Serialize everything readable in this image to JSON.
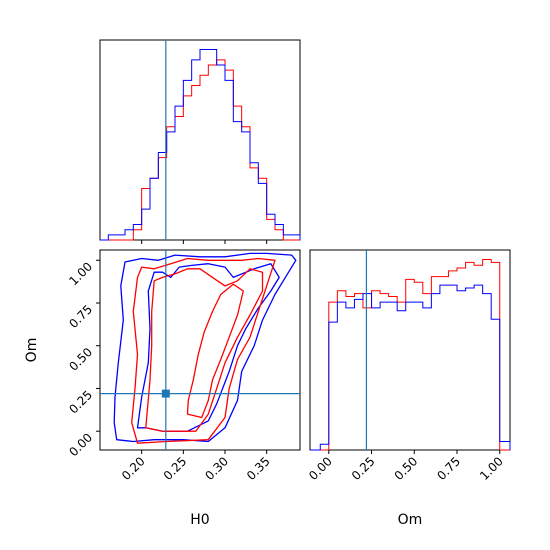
{
  "chart_data": {
    "type": "corner",
    "colors": {
      "series_a": "#ff0000",
      "series_b": "#0000ff",
      "truth": "#1f77b4"
    },
    "truth": {
      "H0": 0.229,
      "Om": 0.22
    },
    "panels": [
      {
        "id": "hist-H0",
        "type": "histogram",
        "x_param": "H0",
        "xlim": [
          0.15,
          0.39
        ],
        "bin_edges": [
          0.15,
          0.16,
          0.17,
          0.18,
          0.19,
          0.2,
          0.21,
          0.22,
          0.23,
          0.24,
          0.25,
          0.26,
          0.27,
          0.28,
          0.29,
          0.3,
          0.31,
          0.32,
          0.33,
          0.34,
          0.35,
          0.36,
          0.37,
          0.38,
          0.39
        ],
        "series": [
          {
            "key": "series_a",
            "values": [
              0,
              0,
              0,
              0,
              2,
              10,
              12,
              16,
              22,
              24,
              28,
              30,
              32,
              34,
              35,
              33,
              26,
              22,
              14,
              12,
              4,
              2,
              0,
              0
            ]
          },
          {
            "key": "series_b",
            "values": [
              0,
              1,
              1,
              2,
              3,
              6,
              12,
              17,
              21,
              26,
              31,
              35,
              37,
              37,
              34,
              31,
              23,
              21,
              15,
              11,
              5,
              3,
              1,
              1
            ]
          }
        ]
      },
      {
        "id": "contour-H0-Om",
        "type": "contour",
        "x_param": "H0",
        "y_param": "Om",
        "xlim": [
          0.15,
          0.39
        ],
        "ylim": [
          -0.11,
          1.06
        ],
        "x_ticks": [
          "0.20",
          "0.25",
          "0.30",
          "0.35"
        ],
        "x_tick_values": [
          0.2,
          0.25,
          0.3,
          0.35
        ],
        "y_ticks": [
          "0.00",
          "0.25",
          "0.50",
          "0.75",
          "1.00"
        ],
        "y_tick_values": [
          0.0,
          0.25,
          0.5,
          0.75,
          1.0
        ],
        "xlabel": "H0",
        "ylabel": "Om",
        "contours": [
          {
            "key": "series_b",
            "points": [
              [
                0.17,
                -0.05
              ],
              [
                0.19,
                -0.06
              ],
              [
                0.215,
                -0.05
              ],
              [
                0.25,
                -0.05
              ],
              [
                0.28,
                -0.06
              ],
              [
                0.3,
                0.02
              ],
              [
                0.315,
                0.18
              ],
              [
                0.32,
                0.35
              ],
              [
                0.335,
                0.5
              ],
              [
                0.345,
                0.65
              ],
              [
                0.36,
                0.8
              ],
              [
                0.37,
                0.88
              ],
              [
                0.385,
                1.0
              ],
              [
                0.38,
                1.03
              ],
              [
                0.35,
                1.04
              ],
              [
                0.33,
                1.04
              ],
              [
                0.3,
                1.02
              ],
              [
                0.27,
                1.02
              ],
              [
                0.24,
                1.03
              ],
              [
                0.22,
                1.0
              ],
              [
                0.2,
                1.01
              ],
              [
                0.18,
                0.99
              ],
              [
                0.175,
                0.85
              ],
              [
                0.178,
                0.65
              ],
              [
                0.172,
                0.4
              ],
              [
                0.168,
                0.2
              ],
              [
                0.167,
                0.05
              ]
            ]
          },
          {
            "key": "series_b",
            "points": [
              [
                0.195,
                0.02
              ],
              [
                0.205,
                0.02
              ],
              [
                0.225,
                0.0
              ],
              [
                0.255,
                0.0
              ],
              [
                0.28,
                0.06
              ],
              [
                0.29,
                0.16
              ],
              [
                0.305,
                0.35
              ],
              [
                0.315,
                0.5
              ],
              [
                0.325,
                0.6
              ],
              [
                0.34,
                0.72
              ],
              [
                0.355,
                0.82
              ],
              [
                0.365,
                0.9
              ],
              [
                0.355,
                0.98
              ],
              [
                0.335,
                0.95
              ],
              [
                0.31,
                0.9
              ],
              [
                0.3,
                0.96
              ],
              [
                0.28,
                0.98
              ],
              [
                0.26,
                0.97
              ],
              [
                0.245,
                0.96
              ],
              [
                0.235,
                0.9
              ],
              [
                0.225,
                0.93
              ],
              [
                0.215,
                0.93
              ],
              [
                0.208,
                0.82
              ],
              [
                0.21,
                0.6
              ],
              [
                0.208,
                0.4
              ],
              [
                0.2,
                0.2
              ]
            ]
          },
          {
            "key": "series_a",
            "points": [
              [
                0.195,
                -0.07
              ],
              [
                0.23,
                -0.06
              ],
              [
                0.28,
                -0.05
              ],
              [
                0.3,
                0.08
              ],
              [
                0.305,
                0.25
              ],
              [
                0.315,
                0.42
              ],
              [
                0.33,
                0.55
              ],
              [
                0.34,
                0.7
              ],
              [
                0.35,
                0.85
              ],
              [
                0.36,
                1.0
              ],
              [
                0.34,
                1.01
              ],
              [
                0.32,
                1.0
              ],
              [
                0.3,
                1.0
              ],
              [
                0.28,
                1.0
              ],
              [
                0.255,
                1.01
              ],
              [
                0.235,
                0.98
              ],
              [
                0.215,
                0.95
              ],
              [
                0.2,
                0.96
              ],
              [
                0.195,
                0.9
              ],
              [
                0.19,
                0.7
              ],
              [
                0.195,
                0.45
              ],
              [
                0.192,
                0.25
              ],
              [
                0.188,
                0.05
              ]
            ]
          },
          {
            "key": "series_a",
            "points": [
              [
                0.205,
                0.02
              ],
              [
                0.225,
                0.0
              ],
              [
                0.265,
                0.0
              ],
              [
                0.28,
                0.1
              ],
              [
                0.29,
                0.25
              ],
              [
                0.3,
                0.4
              ],
              [
                0.315,
                0.55
              ],
              [
                0.33,
                0.68
              ],
              [
                0.345,
                0.82
              ],
              [
                0.345,
                0.93
              ],
              [
                0.33,
                0.95
              ],
              [
                0.315,
                0.88
              ],
              [
                0.3,
                0.85
              ],
              [
                0.285,
                0.9
              ],
              [
                0.27,
                0.95
              ],
              [
                0.255,
                0.95
              ],
              [
                0.24,
                0.92
              ],
              [
                0.225,
                0.9
              ],
              [
                0.215,
                0.88
              ],
              [
                0.212,
                0.7
              ],
              [
                0.212,
                0.5
              ],
              [
                0.21,
                0.3
              ]
            ]
          },
          {
            "key": "series_a",
            "points": [
              [
                0.255,
                0.1
              ],
              [
                0.272,
                0.08
              ],
              [
                0.28,
                0.18
              ],
              [
                0.285,
                0.3
              ],
              [
                0.295,
                0.42
              ],
              [
                0.305,
                0.55
              ],
              [
                0.315,
                0.68
              ],
              [
                0.322,
                0.82
              ],
              [
                0.31,
                0.86
              ],
              [
                0.295,
                0.8
              ],
              [
                0.285,
                0.7
              ],
              [
                0.275,
                0.58
              ],
              [
                0.268,
                0.45
              ],
              [
                0.262,
                0.3
              ],
              [
                0.256,
                0.18
              ]
            ]
          }
        ]
      },
      {
        "id": "hist-Om",
        "type": "histogram",
        "x_param": "Om",
        "xlim": [
          -0.11,
          1.06
        ],
        "x_ticks": [
          "0.00",
          "0.25",
          "0.50",
          "0.75",
          "1.00"
        ],
        "x_tick_values": [
          0.0,
          0.25,
          0.5,
          0.75,
          1.0
        ],
        "xlabel": "Om",
        "bin_edges": [
          -0.11,
          -0.05,
          0.0,
          0.05,
          0.1,
          0.15,
          0.2,
          0.25,
          0.3,
          0.35,
          0.4,
          0.45,
          0.5,
          0.55,
          0.6,
          0.65,
          0.7,
          0.75,
          0.8,
          0.85,
          0.9,
          0.95,
          1.0,
          1.06
        ],
        "series": [
          {
            "key": "series_a",
            "values": [
              0,
              0,
              52,
              56,
              54,
              55,
              50,
              56,
              55,
              54,
              52,
              60,
              59,
              55,
              61,
              61,
              63,
              64,
              66,
              65,
              67,
              66,
              0
            ]
          },
          {
            "key": "series_b",
            "values": [
              0,
              2,
              45,
              52,
              50,
              53,
              55,
              50,
              52,
              52,
              49,
              52,
              52,
              50,
              55,
              58,
              58,
              56,
              57,
              58,
              55,
              46,
              3
            ]
          }
        ]
      }
    ]
  }
}
